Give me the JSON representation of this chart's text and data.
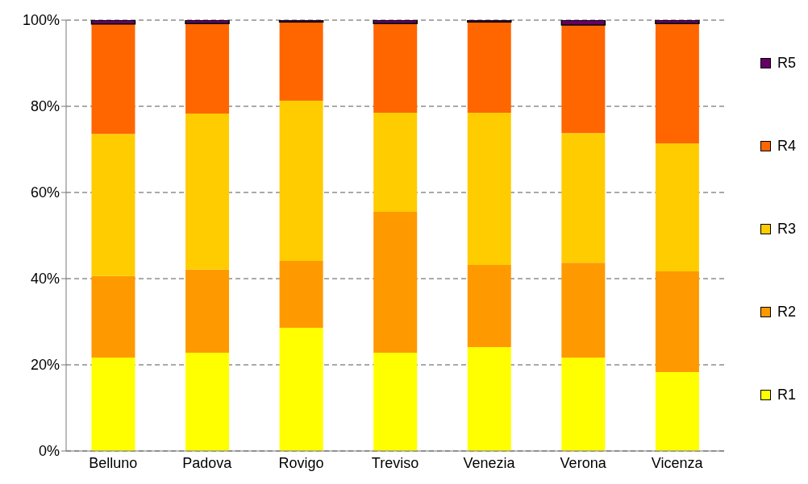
{
  "chart_data": {
    "type": "bar",
    "stacked": true,
    "categories": [
      "Belluno",
      "Padova",
      "Rovigo",
      "Treviso",
      "Venezia",
      "Verona",
      "Vicenza"
    ],
    "series": [
      {
        "name": "R1",
        "color": "#ffff00",
        "values": [
          21.7,
          22.8,
          28.6,
          22.8,
          24.1,
          21.7,
          18.3
        ]
      },
      {
        "name": "R2",
        "color": "#ff9900",
        "values": [
          18.9,
          19.3,
          15.5,
          32.7,
          19.1,
          22.0,
          23.4
        ]
      },
      {
        "name": "R3",
        "color": "#ffcc00",
        "values": [
          33.0,
          36.2,
          37.2,
          23.0,
          35.3,
          30.1,
          29.7
        ]
      },
      {
        "name": "R4",
        "color": "#ff6600",
        "values": [
          25.5,
          20.9,
          18.3,
          20.7,
          21.1,
          25.1,
          27.8
        ]
      },
      {
        "name": "R5",
        "color": "#660066",
        "values": [
          0.9,
          0.8,
          0.4,
          0.8,
          0.4,
          1.1,
          0.8
        ]
      }
    ],
    "ylim": [
      0,
      100
    ],
    "yticks": [
      {
        "value": 0,
        "label": "0%"
      },
      {
        "value": 20,
        "label": "20%"
      },
      {
        "value": 40,
        "label": "40%"
      },
      {
        "value": 60,
        "label": "60%"
      },
      {
        "value": 80,
        "label": "80%"
      },
      {
        "value": 100,
        "label": "100%"
      }
    ],
    "grid": "y",
    "legend": "right"
  }
}
